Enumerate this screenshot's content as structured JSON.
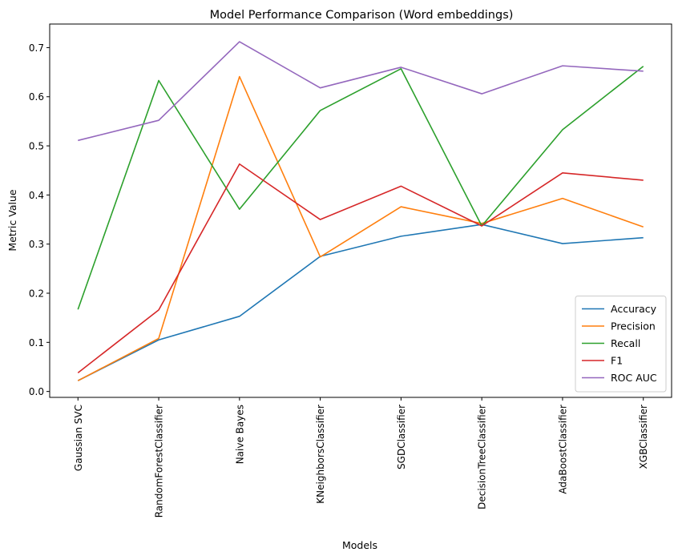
{
  "chart_data": {
    "type": "line",
    "title": "Model Performance Comparison (Word embeddings)",
    "xlabel": "Models",
    "ylabel": "Metric Value",
    "ylim": [
      -0.012,
      0.748
    ],
    "yticks": [
      "0.0",
      "0.1",
      "0.2",
      "0.3",
      "0.4",
      "0.5",
      "0.6",
      "0.7"
    ],
    "grid": false,
    "legend_position": "lower-right",
    "categories": [
      "Gaussian SVC",
      "RandomForestClassifier",
      "Naive Bayes",
      "KNeighborsClassifier",
      "SGDClassifier",
      "DecisionTreeClassifier",
      "AdaBoostClassifier",
      "XGBClassifier"
    ],
    "series": [
      {
        "name": "Accuracy",
        "color": "#1f77b4",
        "values": [
          0.022,
          0.105,
          0.153,
          0.275,
          0.316,
          0.34,
          0.301,
          0.313
        ]
      },
      {
        "name": "Precision",
        "color": "#ff7f0e",
        "values": [
          0.022,
          0.108,
          0.641,
          0.274,
          0.376,
          0.342,
          0.393,
          0.335
        ]
      },
      {
        "name": "Recall",
        "color": "#2ca02c",
        "values": [
          0.167,
          0.633,
          0.371,
          0.572,
          0.657,
          0.337,
          0.533,
          0.662
        ]
      },
      {
        "name": "F1",
        "color": "#d62728",
        "values": [
          0.038,
          0.166,
          0.463,
          0.35,
          0.418,
          0.337,
          0.445,
          0.43
        ]
      },
      {
        "name": "ROC AUC",
        "color": "#9467bd",
        "values": [
          0.511,
          0.552,
          0.712,
          0.618,
          0.66,
          0.606,
          0.663,
          0.652
        ]
      }
    ]
  }
}
